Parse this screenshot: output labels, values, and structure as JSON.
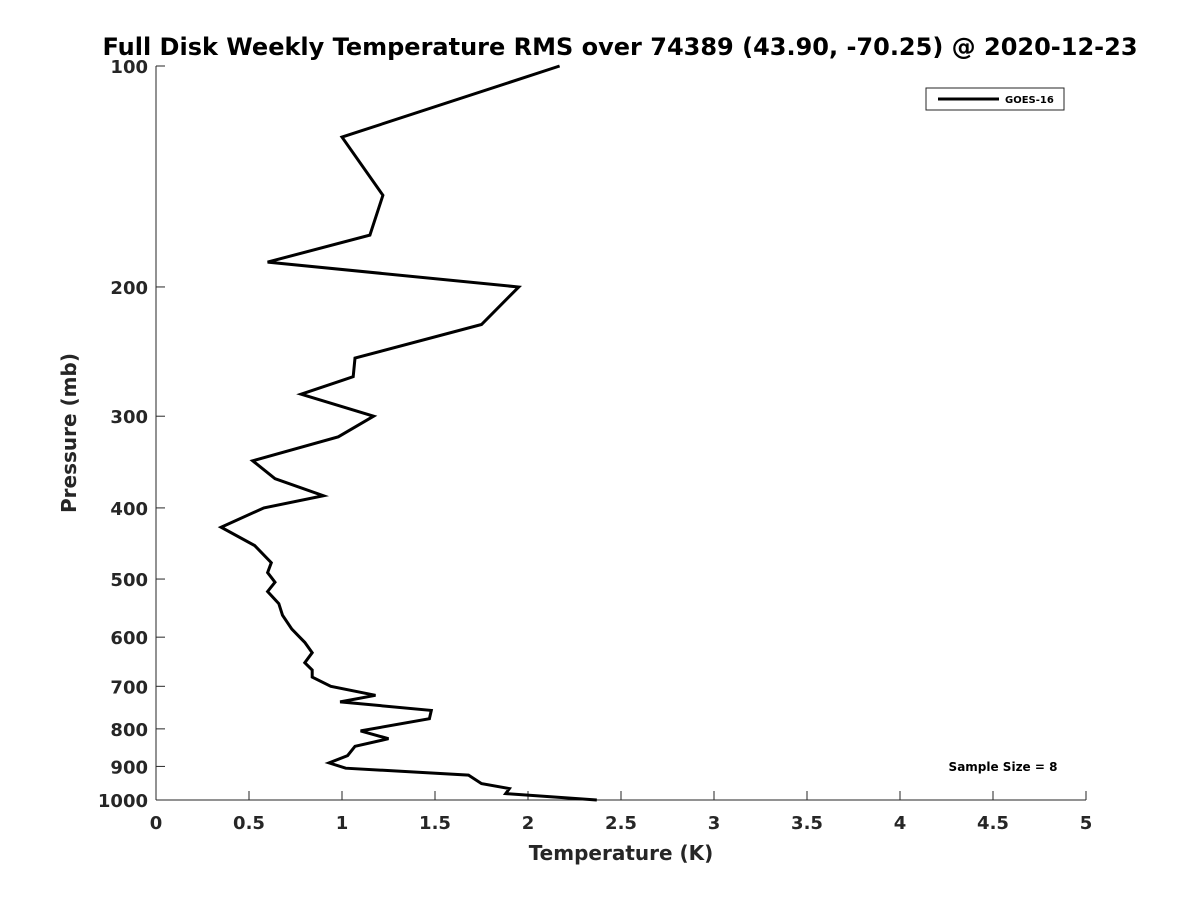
{
  "chart_data": {
    "type": "line",
    "title": "Full Disk Weekly Temperature RMS over 74389 (43.90, -70.25) @ 2020-12-23",
    "xlabel": "Temperature (K)",
    "ylabel": "Pressure (mb)",
    "xlim": [
      0,
      5
    ],
    "ylim": [
      100,
      1000
    ],
    "y_scale": "log",
    "y_reversed": true,
    "x_ticks": [
      "0",
      "0.5",
      "1",
      "1.5",
      "2",
      "2.5",
      "3",
      "3.5",
      "4",
      "4.5",
      "5"
    ],
    "y_ticks": [
      "100",
      "200",
      "300",
      "400",
      "500",
      "600",
      "700",
      "800",
      "900",
      "1000"
    ],
    "grid": false,
    "legend_position": "top-right",
    "annotation": "Sample Size = 8",
    "series": [
      {
        "name": "GOES-16",
        "color": "#000000",
        "points": [
          [
            2.17,
            100
          ],
          [
            1.0,
            125
          ],
          [
            1.22,
            150
          ],
          [
            1.15,
            170
          ],
          [
            0.6,
            185
          ],
          [
            1.95,
            200
          ],
          [
            1.75,
            225
          ],
          [
            1.07,
            250
          ],
          [
            1.06,
            265
          ],
          [
            0.78,
            280
          ],
          [
            1.17,
            300
          ],
          [
            0.98,
            320
          ],
          [
            0.52,
            345
          ],
          [
            0.64,
            365
          ],
          [
            0.9,
            385
          ],
          [
            0.58,
            400
          ],
          [
            0.35,
            425
          ],
          [
            0.53,
            450
          ],
          [
            0.62,
            475
          ],
          [
            0.6,
            490
          ],
          [
            0.64,
            505
          ],
          [
            0.6,
            520
          ],
          [
            0.66,
            540
          ],
          [
            0.68,
            560
          ],
          [
            0.73,
            585
          ],
          [
            0.8,
            610
          ],
          [
            0.84,
            630
          ],
          [
            0.8,
            650
          ],
          [
            0.84,
            665
          ],
          [
            0.84,
            680
          ],
          [
            0.94,
            700
          ],
          [
            1.18,
            720
          ],
          [
            0.99,
            735
          ],
          [
            1.48,
            755
          ],
          [
            1.47,
            775
          ],
          [
            1.1,
            805
          ],
          [
            1.25,
            825
          ],
          [
            1.07,
            845
          ],
          [
            1.03,
            870
          ],
          [
            0.93,
            890
          ],
          [
            1.02,
            905
          ],
          [
            1.68,
            925
          ],
          [
            1.75,
            950
          ],
          [
            1.9,
            965
          ],
          [
            1.88,
            980
          ],
          [
            2.37,
            1000
          ]
        ]
      }
    ]
  }
}
